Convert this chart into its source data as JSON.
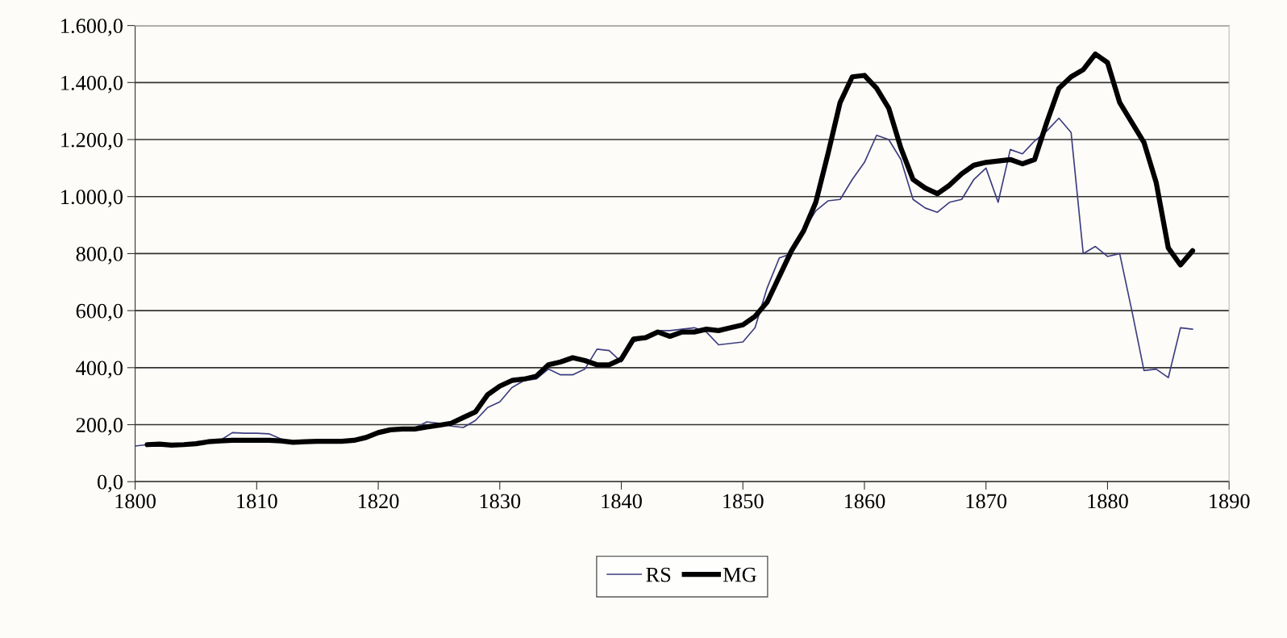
{
  "chart_data": {
    "type": "line",
    "xlim": [
      1800,
      1890
    ],
    "xticks": [
      1800,
      1810,
      1820,
      1830,
      1840,
      1850,
      1860,
      1870,
      1880,
      1890
    ],
    "ylim": [
      0,
      1600
    ],
    "yticks": [
      {
        "value": 0,
        "label": "0,0"
      },
      {
        "value": 200,
        "label": "200,0"
      },
      {
        "value": 400,
        "label": "400,0"
      },
      {
        "value": 600,
        "label": "600,0"
      },
      {
        "value": 800,
        "label": "800,0"
      },
      {
        "value": 1000,
        "label": "1.000,0"
      },
      {
        "value": 1200,
        "label": "1.200,0"
      },
      {
        "value": 1400,
        "label": "1.400,0"
      },
      {
        "value": 1600,
        "label": "1.600,0"
      }
    ],
    "grid": "y",
    "legend": "bottom",
    "marker": "none",
    "line_style": "solid",
    "series": [
      {
        "name": "RS",
        "color": "#3d3d80",
        "x": [
          1800,
          1801,
          1802,
          1803,
          1804,
          1805,
          1806,
          1807,
          1808,
          1809,
          1810,
          1811,
          1812,
          1813,
          1814,
          1815,
          1816,
          1817,
          1818,
          1819,
          1820,
          1821,
          1822,
          1823,
          1824,
          1825,
          1826,
          1827,
          1828,
          1829,
          1830,
          1831,
          1832,
          1833,
          1834,
          1835,
          1836,
          1837,
          1838,
          1839,
          1840,
          1841,
          1842,
          1843,
          1844,
          1845,
          1846,
          1847,
          1848,
          1849,
          1850,
          1851,
          1852,
          1853,
          1854,
          1855,
          1856,
          1857,
          1858,
          1859,
          1860,
          1861,
          1862,
          1863,
          1864,
          1865,
          1866,
          1867,
          1868,
          1869,
          1870,
          1871,
          1872,
          1873,
          1874,
          1875,
          1876,
          1877,
          1878,
          1879,
          1880,
          1881,
          1882,
          1883,
          1884,
          1885,
          1886,
          1887
        ],
        "values": [
          125,
          130,
          130,
          128,
          130,
          132,
          138,
          145,
          172,
          170,
          170,
          168,
          150,
          138,
          140,
          142,
          null,
          null,
          145,
          155,
          172,
          180,
          null,
          188,
          210,
          205,
          195,
          190,
          215,
          260,
          280,
          330,
          355,
          360,
          395,
          375,
          375,
          395,
          465,
          460,
          420,
          490,
          505,
          530,
          530,
          535,
          540,
          525,
          480,
          485,
          490,
          540,
          680,
          785,
          800,
          880,
          950,
          985,
          990,
          1060,
          1120,
          1215,
          1200,
          1130,
          990,
          960,
          945,
          980,
          990,
          1060,
          1100,
          980,
          1165,
          1150,
          1195,
          1230,
          1275,
          1225,
          800,
          825,
          790,
          800,
          600,
          390,
          395,
          365,
          540,
          535
        ]
      },
      {
        "name": "MG",
        "color": "#000000",
        "x": [
          1801,
          1802,
          1803,
          1804,
          1805,
          1806,
          1807,
          1808,
          1809,
          1810,
          1811,
          1812,
          1813,
          1814,
          1815,
          1816,
          1817,
          1818,
          1819,
          1820,
          1821,
          1822,
          1823,
          1824,
          1825,
          1826,
          1827,
          1828,
          1829,
          1830,
          1831,
          1832,
          1833,
          1834,
          1835,
          1836,
          1837,
          1838,
          1839,
          1840,
          1841,
          1842,
          1843,
          1844,
          1845,
          1846,
          1847,
          1848,
          1849,
          1850,
          1851,
          1852,
          1853,
          1854,
          1855,
          1856,
          1857,
          1858,
          1859,
          1860,
          1861,
          1862,
          1863,
          1864,
          1865,
          1866,
          1867,
          1868,
          1869,
          1870,
          1871,
          1872,
          1873,
          1874,
          1875,
          1876,
          1877,
          1878,
          1879,
          1880,
          1881,
          1882,
          1883,
          1884,
          1885,
          1886,
          1887
        ],
        "values": [
          130,
          132,
          128,
          130,
          133,
          140,
          143,
          145,
          145,
          145,
          145,
          143,
          138,
          140,
          142,
          142,
          142,
          145,
          155,
          172,
          182,
          185,
          185,
          192,
          198,
          205,
          225,
          245,
          305,
          335,
          355,
          360,
          370,
          410,
          420,
          435,
          425,
          410,
          410,
          430,
          500,
          505,
          525,
          510,
          525,
          525,
          535,
          530,
          540,
          550,
          580,
          630,
          720,
          810,
          880,
          980,
          1150,
          1330,
          1420,
          1425,
          1380,
          1310,
          1170,
          1060,
          1030,
          1010,
          1040,
          1080,
          1110,
          1120,
          1125,
          1130,
          1115,
          1130,
          1260,
          1380,
          1420,
          1445,
          1500,
          1470,
          1330,
          1260,
          1190,
          1050,
          820,
          760,
          810
        ]
      }
    ]
  }
}
